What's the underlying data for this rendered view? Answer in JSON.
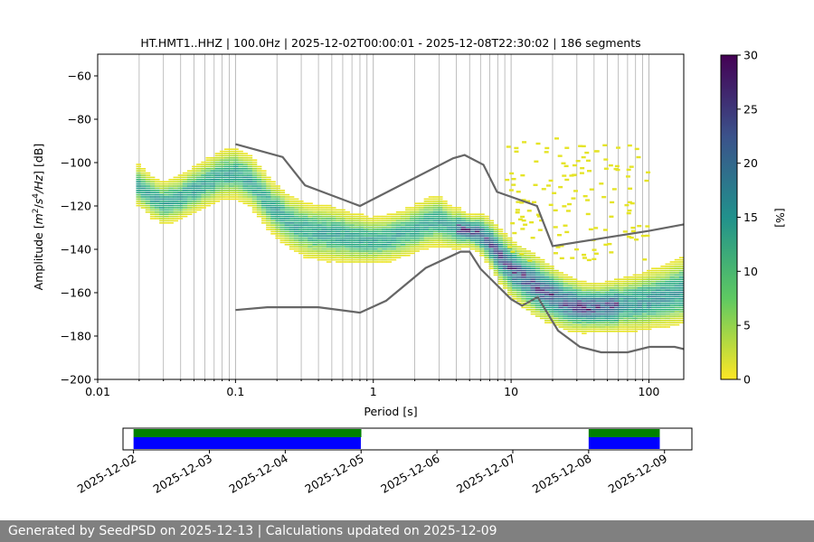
{
  "chart_data": {
    "type": "heatmap",
    "title": "HT.HMT1..HHZ | 100.0Hz | 2025-12-02T00:00:01 - 2025-12-08T22:30:02 | 186 segments",
    "xlabel": "Period [s]",
    "ylabel_parts": [
      "Amplitude [",
      "m",
      "2",
      "/",
      "s",
      "4",
      "/Hz",
      "] [dB]"
    ],
    "x_scale": "log",
    "xlim": [
      0.01,
      179
    ],
    "ylim": [
      -200,
      -50
    ],
    "x_ticks": [
      0.01,
      0.1,
      1,
      10,
      100
    ],
    "x_tick_labels": [
      "0.01",
      "0.1",
      "1",
      "10",
      "100"
    ],
    "y_ticks": [
      -200,
      -180,
      -160,
      -140,
      -120,
      -100,
      -80,
      -60
    ],
    "y_tick_labels": [
      "−200",
      "−180",
      "−160",
      "−140",
      "−120",
      "−100",
      "−80",
      "−60"
    ],
    "grid": "x-only (major and minor)",
    "colorbar": {
      "label": "[%]",
      "range": [
        0,
        30
      ],
      "ticks": [
        0,
        5,
        10,
        15,
        20,
        25,
        30
      ],
      "tick_labels": [
        "0",
        "5",
        "10",
        "15",
        "20",
        "25",
        "30"
      ],
      "colormap": "viridis_r"
    },
    "noise_models": [
      {
        "name": "NHNM",
        "points": [
          [
            0.1,
            -91.5
          ],
          [
            0.22,
            -97.4
          ],
          [
            0.32,
            -110.5
          ],
          [
            0.8,
            -120
          ],
          [
            3.8,
            -98
          ],
          [
            4.6,
            -96.5
          ],
          [
            6.3,
            -101
          ],
          [
            7.9,
            -113.5
          ],
          [
            15.4,
            -120
          ],
          [
            20,
            -138.5
          ],
          [
            100,
            -131.5
          ],
          [
            179,
            -128.5
          ]
        ]
      },
      {
        "name": "NLNM",
        "points": [
          [
            0.1,
            -168
          ],
          [
            0.17,
            -166.7
          ],
          [
            0.4,
            -166.7
          ],
          [
            0.8,
            -169.2
          ],
          [
            1.24,
            -163.7
          ],
          [
            2.4,
            -148.6
          ],
          [
            4.3,
            -141.1
          ],
          [
            5.0,
            -141.1
          ],
          [
            6.0,
            -149
          ],
          [
            10.0,
            -163
          ],
          [
            12.0,
            -166
          ],
          [
            15.6,
            -162
          ],
          [
            21.9,
            -177.5
          ],
          [
            31.6,
            -185
          ],
          [
            45,
            -187.5
          ],
          [
            70,
            -187.5
          ],
          [
            101,
            -185
          ],
          [
            154,
            -185
          ],
          [
            179,
            -186
          ]
        ]
      }
    ],
    "psd_mode_curve": [
      [
        0.019,
        -110
      ],
      [
        0.025,
        -116
      ],
      [
        0.03,
        -119
      ],
      [
        0.04,
        -116
      ],
      [
        0.06,
        -110
      ],
      [
        0.08,
        -106
      ],
      [
        0.1,
        -105
      ],
      [
        0.13,
        -109
      ],
      [
        0.18,
        -120
      ],
      [
        0.25,
        -128
      ],
      [
        0.35,
        -132
      ],
      [
        0.5,
        -133
      ],
      [
        0.7,
        -135
      ],
      [
        1.0,
        -136
      ],
      [
        1.3,
        -135
      ],
      [
        1.8,
        -132
      ],
      [
        2.5,
        -128
      ],
      [
        3.0,
        -127
      ],
      [
        3.6,
        -130
      ],
      [
        4.5,
        -131
      ],
      [
        5.2,
        -132
      ],
      [
        6.0,
        -133
      ],
      [
        7.0,
        -137
      ],
      [
        8.5,
        -144
      ],
      [
        10.5,
        -150
      ],
      [
        13.5,
        -155
      ],
      [
        18.0,
        -160
      ],
      [
        25.0,
        -165
      ],
      [
        33.0,
        -167
      ],
      [
        45.0,
        -167
      ],
      [
        60.0,
        -166
      ],
      [
        80.0,
        -165
      ],
      [
        110.0,
        -163
      ],
      [
        145.0,
        -161
      ],
      [
        179.0,
        -159
      ]
    ],
    "psd_band_width_db": [
      [
        0.019,
        16
      ],
      [
        0.1,
        20
      ],
      [
        0.5,
        22
      ],
      [
        1.0,
        18
      ],
      [
        3.0,
        20
      ],
      [
        5.0,
        12
      ],
      [
        8.0,
        20
      ],
      [
        15.0,
        24
      ],
      [
        40.0,
        18
      ],
      [
        179.0,
        26
      ]
    ],
    "psd_outliers": [
      {
        "x_range": [
          9,
          100
        ],
        "y_range": [
          -145,
          -88
        ],
        "density_percent": 1
      }
    ],
    "availability": {
      "x_tick_labels": [
        "2025-12-02",
        "2025-12-03",
        "2025-12-04",
        "2025-12-05",
        "2025-12-06",
        "2025-12-07",
        "2025-12-08",
        "2025-12-09"
      ],
      "x_range": [
        "2025-12-01T20:40",
        "2025-12-09T08:40"
      ],
      "data_segments": [
        [
          "2025-12-02T00:00:01",
          "2025-12-05T00:05"
        ],
        [
          "2025-12-08T00:00",
          "2025-12-08T22:30:02"
        ]
      ],
      "used_segments": [
        [
          "2025-12-02T00:00:01",
          "2025-12-04T23:55"
        ],
        [
          "2025-12-08T00:00",
          "2025-12-08T22:30:02"
        ]
      ],
      "colors": {
        "data": "#008000",
        "used": "#0000ff"
      }
    }
  },
  "footer": {
    "text": "Generated by SeedPSD on 2025-12-13 | Calculations updated on 2025-12-09"
  }
}
